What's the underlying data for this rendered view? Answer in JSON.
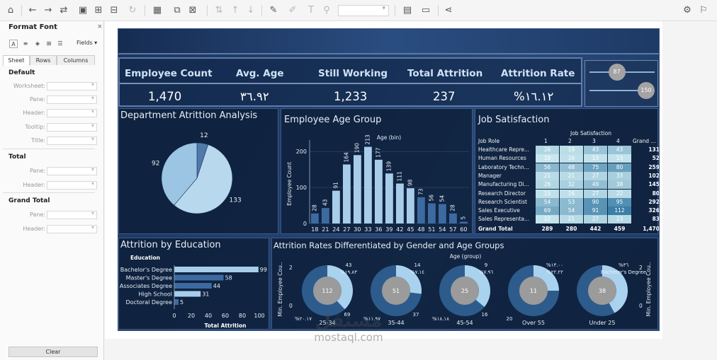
{
  "toolbar": {
    "icons": [
      "home-icon",
      "undo-icon",
      "redo-icon",
      "data-source-icon",
      "save-icon",
      "new-sheet-icon",
      "clear-icon",
      "refresh-icon",
      "chart-type-icon",
      "duplicate-icon",
      "clear-sheet-icon",
      "swap-icon",
      "sort-ascending-icon",
      "sort-descending-icon",
      "highlight-icon",
      "group-icon",
      "label-icon",
      "pin-icon",
      "fit-dropdown",
      "show-cards-icon",
      "presentation-icon",
      "share-icon",
      "gear-icon",
      "pin-right-icon"
    ]
  },
  "format_pane": {
    "title": "Format Font",
    "fields_label": "Fields",
    "tabs": [
      "Sheet",
      "Rows",
      "Columns"
    ],
    "sections": [
      {
        "heading": "Default",
        "fields": [
          "Worksheet:",
          "Pane:",
          "Header:",
          "Tooltip:",
          "Title:"
        ]
      },
      {
        "heading": "Total",
        "fields": [
          "Pane:",
          "Header:"
        ]
      },
      {
        "heading": "Grand Total",
        "fields": [
          "Pane:",
          "Header:"
        ]
      }
    ],
    "clear_label": "Clear"
  },
  "kpis": [
    {
      "label": "Employee Count",
      "value": "1,470"
    },
    {
      "label": "Avg. Age",
      "value": "٣٦.٩٢"
    },
    {
      "label": "Still Working",
      "value": "1,233"
    },
    {
      "label": "Total Attrition",
      "value": "237"
    },
    {
      "label": "Attrition Rate",
      "value": "%١٦.١٢"
    }
  ],
  "sliders": [
    {
      "value": "87",
      "fraction": 0.55
    },
    {
      "value": "150",
      "fraction": 1.0
    }
  ],
  "colors": {
    "pie_light": "#b8d8ee",
    "pie_mid": "#9cc5e4",
    "pie_dark": "#4f7aaa",
    "bar_light": "#a7cdea",
    "bar_dark": "#3d6aa0",
    "heat_low": "#c7e6ee",
    "heat_high": "#3b7ea6"
  },
  "watermark": {
    "arabic": "مستقل",
    "latin": "mostaql.com"
  },
  "chart_data": [
    {
      "type": "pie",
      "title": "Department Atrittion Analysis",
      "values": [
        12,
        133,
        92
      ]
    },
    {
      "type": "bar",
      "title": "Employee Age Group",
      "xlabel": "Age (bin)",
      "ylabel": "Employee Count",
      "categories": [
        "18",
        "21",
        "24",
        "27",
        "30",
        "33",
        "36",
        "39",
        "42",
        "45",
        "48",
        "51",
        "54",
        "57",
        "60"
      ],
      "values": [
        28,
        43,
        91,
        164,
        190,
        213,
        177,
        139,
        111,
        98,
        73,
        56,
        54,
        28,
        5
      ],
      "ylim": [
        0,
        220
      ],
      "yticks": [
        "0",
        "100",
        "200"
      ]
    },
    {
      "type": "table",
      "title": "Job Satisfaction",
      "column_group": "Job Satisfaction",
      "columns": [
        "Job Role",
        "1",
        "2",
        "3",
        "4",
        "Grand ..."
      ],
      "rows": [
        {
          "role": "Healthcare Repre...",
          "values": [
            26,
            19,
            43,
            43
          ],
          "total": 131
        },
        {
          "role": "Human Resources",
          "values": [
            10,
            16,
            13,
            13
          ],
          "total": 52
        },
        {
          "role": "Laboratory Techn...",
          "values": [
            56,
            48,
            75,
            80
          ],
          "total": 259
        },
        {
          "role": "Manager",
          "values": [
            21,
            21,
            27,
            33
          ],
          "total": 102
        },
        {
          "role": "Manufacturing Di...",
          "values": [
            26,
            32,
            49,
            38
          ],
          "total": 145
        },
        {
          "role": "Research Director",
          "values": [
            15,
            16,
            27,
            22
          ],
          "total": 80
        },
        {
          "role": "Research Scientist",
          "values": [
            54,
            53,
            90,
            95
          ],
          "total": 292
        },
        {
          "role": "Sales Executive",
          "values": [
            69,
            54,
            91,
            112
          ],
          "total": 326
        },
        {
          "role": "Sales Representa...",
          "values": [
            12,
            21,
            27,
            23
          ],
          "total": 83
        }
      ],
      "grand_total": {
        "label": "Grand Total",
        "values": [
          289,
          280,
          442,
          459
        ],
        "total": "1,470"
      }
    },
    {
      "type": "bar",
      "orientation": "horizontal",
      "title": "Attrition by Education",
      "ylabel": "Education",
      "xlabel": "Total Attrition",
      "categories": [
        "Bachelor's Degree",
        "Master's Degree",
        "Associates Degree",
        "High School",
        "Doctoral Degree"
      ],
      "values": [
        99,
        58,
        44,
        31,
        5
      ],
      "xlim": [
        0,
        100
      ],
      "xticks": [
        "0",
        "20",
        "40",
        "60",
        "80",
        "100"
      ]
    },
    {
      "type": "pie",
      "title": "Attrition Rates Differentiated by Gender and Age Groups",
      "xlabel": "Age (group)",
      "ylabel_left": "Min. Employee Cou..",
      "ylabel_right": "Min. Employee Cou..",
      "axis_ticks_left": [
        "2",
        "0"
      ],
      "axis_ticks_right": [
        "2",
        "0"
      ],
      "groups": [
        {
          "name": "25-34",
          "center": "112",
          "labels": [
            "43",
            "%١٩.٨٣",
            "%٢٠.١٧",
            "69"
          ],
          "fraction": 0.38
        },
        {
          "name": "35-44",
          "center": "51",
          "labels": [
            "14",
            "%٧.١٤",
            "%١١.٩٧",
            "37"
          ],
          "fraction": 0.27
        },
        {
          "name": "45-54",
          "center": "25",
          "labels": [
            "9",
            "%٧.٩٦",
            "%١٨.١٨",
            "16"
          ],
          "fraction": 0.36
        },
        {
          "name": "Over 55",
          "center": "11",
          "labels": [
            "%١٣.٠٠",
            "%٢٢.٢٢",
            "20"
          ],
          "fraction": 0.25
        },
        {
          "name": "Under 25",
          "center": "38",
          "labels": [
            "%٣٦",
            "Bachelor's Degree"
          ],
          "fraction": 0.42
        }
      ]
    }
  ]
}
